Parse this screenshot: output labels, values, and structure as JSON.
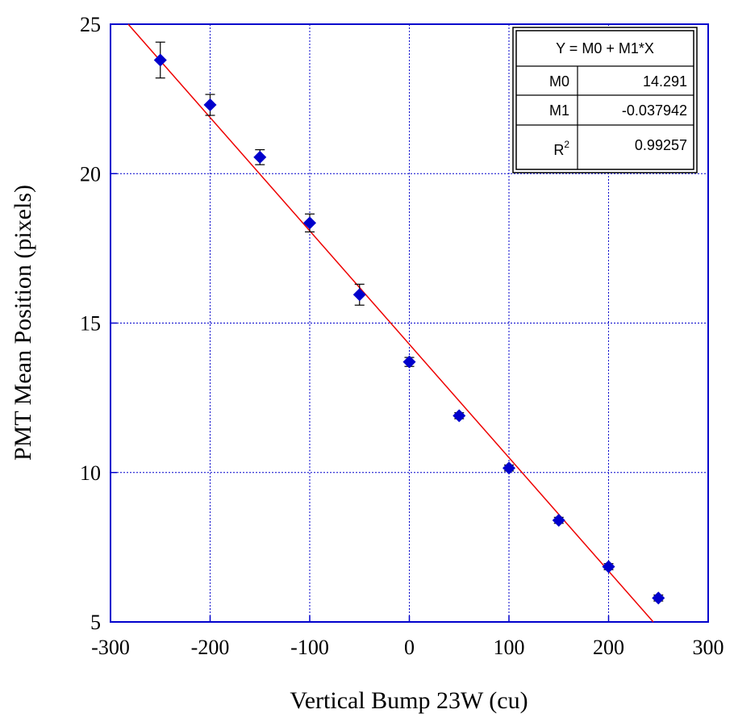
{
  "chart_data": {
    "type": "scatter",
    "xlabel": "Vertical Bump 23W (cu)",
    "ylabel": "PMT Mean Position (pixels)",
    "xlim": [
      -300,
      300
    ],
    "ylim": [
      5,
      25
    ],
    "x_ticks": [
      -300,
      -200,
      -100,
      0,
      100,
      200,
      300
    ],
    "y_ticks": [
      5,
      10,
      15,
      20,
      25
    ],
    "grid": true,
    "series": [
      {
        "x": [
          -250,
          -200,
          -150,
          -100,
          -50,
          0,
          50,
          100,
          150,
          200,
          250
        ],
        "y": [
          23.8,
          22.3,
          20.55,
          18.35,
          15.95,
          13.7,
          11.9,
          10.15,
          8.4,
          6.85,
          5.8
        ],
        "error": [
          0.6,
          0.35,
          0.25,
          0.3,
          0.35,
          0.15,
          0.1,
          0.1,
          0.1,
          0.1,
          0.1
        ],
        "color": "#0000cc"
      }
    ],
    "fit": {
      "type": "linear",
      "intercept": 14.291,
      "slope": -0.037942,
      "color": "#ee0000"
    },
    "fit_table": {
      "equation": "Y = M0 + M1*X",
      "rows": [
        {
          "label": "M0",
          "value": "14.291"
        },
        {
          "label": "M1",
          "value": "-0.037942"
        },
        {
          "label": "R",
          "label_sup": "2",
          "value": "0.99257"
        }
      ]
    },
    "frame_color": "#0000cc",
    "grid_color": "#0000cc"
  }
}
